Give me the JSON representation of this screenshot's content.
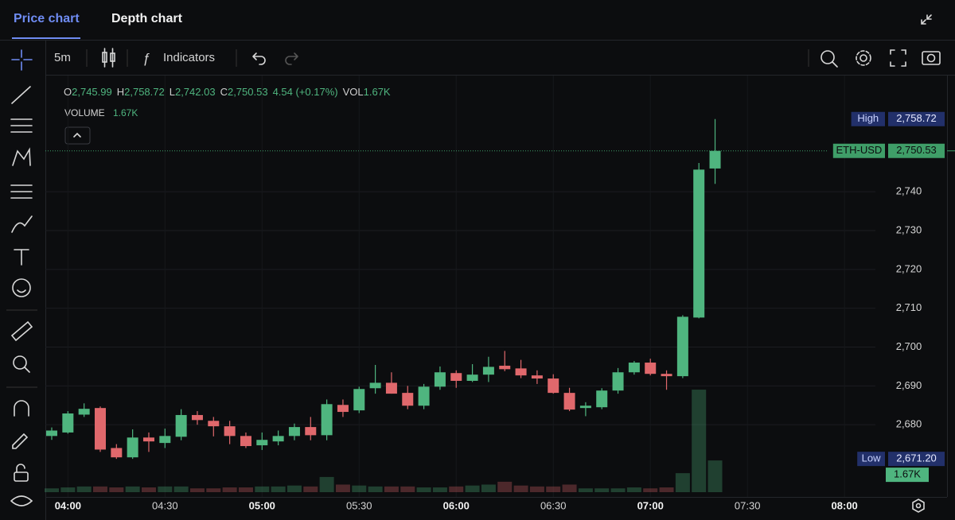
{
  "tabs": [
    "Price chart",
    "Depth chart"
  ],
  "toolbar": {
    "interval": "5m",
    "indicators": "Indicators"
  },
  "legend": {
    "open_key": "O",
    "open": "2,745.99",
    "high_key": "H",
    "high": "2,758.72",
    "low_key": "L",
    "low": "2,742.03",
    "close_key": "C",
    "close": "2,750.53",
    "change": "4.54 (+0.17%)",
    "vol_key": "VOL",
    "vol": "1.67K"
  },
  "volume_legend": {
    "label": "VOLUME",
    "value": "1.67K"
  },
  "chart_data": {
    "type": "candlestick",
    "categories": [
      null,
      "04:00",
      null,
      null,
      null,
      null,
      null,
      "04:30",
      null,
      null,
      null,
      null,
      null,
      "05:00",
      null,
      null,
      null,
      null,
      null,
      "05:30",
      null,
      null,
      null,
      null,
      null,
      "06:00",
      null,
      null,
      null,
      null,
      null,
      "06:30",
      null,
      null,
      null,
      null,
      null,
      "07:00",
      null,
      null,
      null,
      null,
      null,
      "07:30",
      null,
      null,
      null,
      null,
      null,
      "08:00",
      null,
      null
    ],
    "open": [
      2677.1,
      2678,
      2682.6,
      2684.3,
      2674,
      2671.6,
      2676.7,
      2675.3,
      2676.9,
      2682.5,
      2681,
      2679.6,
      2677.1,
      2674.7,
      2675.7,
      2677.1,
      2679.4,
      2677.3,
      2685.1,
      2683.7,
      2689.4,
      2690.8,
      2688.2,
      2684.9,
      2689.8,
      2693.3,
      2691.3,
      2692.9,
      2695.2,
      2694.5,
      2692.7,
      2691.9,
      2688.2,
      2684.3,
      2684.5,
      2688.8,
      2693.5,
      2696,
      2693.1,
      2692.5,
      2707.6,
      2745.99,
      null,
      null,
      null,
      null,
      null,
      null,
      null,
      null,
      null,
      null
    ],
    "high": [
      2679.3,
      2683.5,
      2685.5,
      2684.7,
      2675,
      2678.8,
      2678,
      2679,
      2684,
      2683.5,
      2682,
      2681,
      2678,
      2678,
      2678.5,
      2680.3,
      2682,
      2686.5,
      2686.5,
      2689.8,
      2695.4,
      2693.5,
      2690,
      2690.5,
      2695,
      2694,
      2695.6,
      2697.5,
      2699,
      2696.7,
      2694,
      2693,
      2689.5,
      2685.8,
      2689.4,
      2694.6,
      2696.4,
      2697,
      2694,
      2708.2,
      2747.4,
      2758.72,
      null,
      null,
      null,
      null,
      null,
      null,
      null,
      null,
      null,
      null
    ],
    "low": [
      2676.1,
      2677.7,
      2682,
      2673,
      2671.2,
      2671.2,
      2673,
      2674,
      2676,
      2680,
      2677,
      2675,
      2674,
      2673.5,
      2674.7,
      2676,
      2676,
      2676,
      2682,
      2683,
      2688,
      2688,
      2684,
      2684,
      2689,
      2689.5,
      2691,
      2691,
      2693.8,
      2692,
      2690.5,
      2688,
      2683.5,
      2682.2,
      2684,
      2688,
      2692.9,
      2692.7,
      2689,
      2692,
      2707.4,
      2742.03,
      null,
      null,
      null,
      null,
      null,
      null,
      null,
      null,
      null,
      null
    ],
    "close": [
      2678.5,
      2682.9,
      2684.1,
      2673.6,
      2671.6,
      2676.7,
      2675.7,
      2677.1,
      2682.5,
      2681.2,
      2679.6,
      2677.1,
      2674.5,
      2676.1,
      2677.1,
      2679.4,
      2677.3,
      2685.3,
      2683.3,
      2689.2,
      2690.8,
      2688,
      2684.9,
      2689.8,
      2693.5,
      2691.3,
      2692.9,
      2694.9,
      2694.3,
      2692.7,
      2691.9,
      2688.2,
      2683.9,
      2684.9,
      2688.8,
      2693.5,
      2696,
      2693.1,
      2692.5,
      2707.8,
      2745.7,
      2750.53,
      null,
      null,
      null,
      null,
      null,
      null,
      null,
      null,
      null,
      null
    ],
    "volume": {
      "axis": "y2",
      "values": [
        200,
        250,
        300,
        300,
        250,
        300,
        250,
        300,
        300,
        200,
        200,
        250,
        250,
        300,
        300,
        350,
        300,
        800,
        400,
        350,
        300,
        300,
        300,
        250,
        250,
        300,
        350,
        400,
        550,
        350,
        300,
        300,
        400,
        200,
        200,
        200,
        250,
        200,
        250,
        1000,
        5400,
        1670,
        null,
        null,
        null,
        null,
        null,
        null,
        null,
        null,
        null,
        null
      ],
      "value_labels": [
        null,
        null,
        null,
        null,
        null,
        null,
        null,
        null,
        null,
        null,
        null,
        null,
        null,
        null,
        null,
        null,
        null,
        null,
        null,
        null,
        null,
        null,
        null,
        null,
        null,
        null,
        null,
        null,
        null,
        null,
        null,
        null,
        null,
        null,
        null,
        null,
        null,
        null,
        null,
        null,
        null,
        "1.67K",
        null,
        null,
        null,
        null,
        null,
        null,
        null,
        null,
        null,
        null
      ]
    },
    "up_color": "#4fb57f",
    "down_color": "#e0686c",
    "ylim": [
      2661.4,
      2760.1
    ],
    "yticks": [
      {
        "value": 2680,
        "label": "2,680"
      },
      {
        "value": 2690,
        "label": "2,690"
      },
      {
        "value": 2700,
        "label": "2,700"
      },
      {
        "value": 2710,
        "label": "2,710"
      },
      {
        "value": 2720,
        "label": "2,720"
      },
      {
        "value": 2730,
        "label": "2,730"
      },
      {
        "value": 2740,
        "label": "2,740"
      }
    ],
    "y2lim": [
      0,
      6700
    ],
    "grid": true,
    "price_tags": [
      {
        "label": "High",
        "value": 2758.72,
        "value_label": "2,758.72",
        "color": "#22306a"
      },
      {
        "label": "ETH-USD",
        "value": 2750.53,
        "value_label": "2,750.53",
        "color": "#3f9e68",
        "line": true
      },
      {
        "label": "Low",
        "value": 2671.2,
        "value_label": "2,671.20",
        "color": "#22306a"
      }
    ]
  }
}
